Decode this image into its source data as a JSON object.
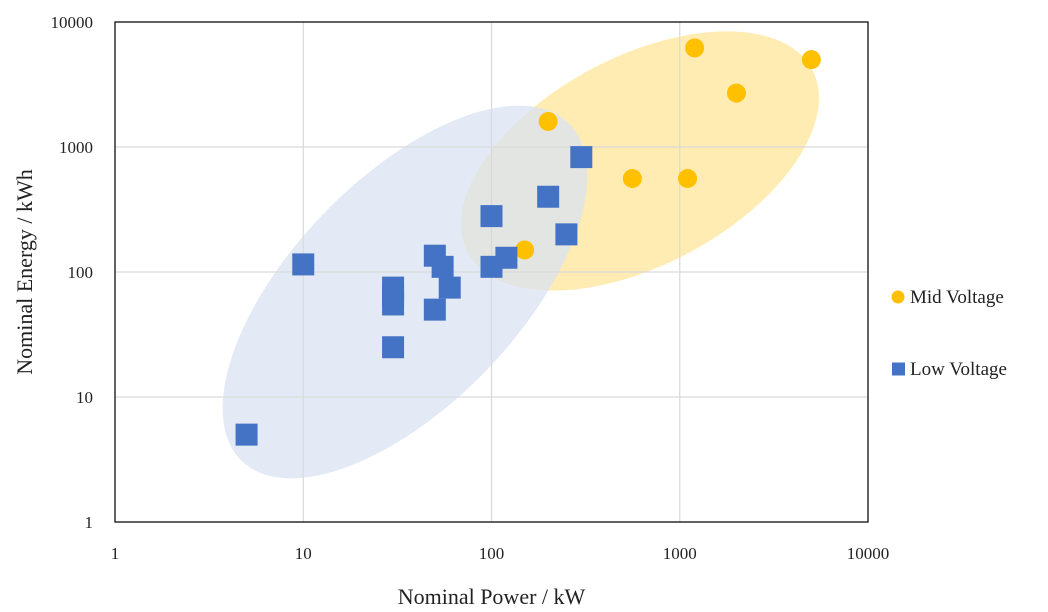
{
  "chart_data": {
    "type": "scatter",
    "xscale": "log",
    "yscale": "log",
    "xlim": [
      1,
      10000
    ],
    "ylim": [
      1,
      10000
    ],
    "xticks": [
      "1",
      "10",
      "100",
      "1000",
      "10000"
    ],
    "yticks": [
      "1",
      "10",
      "100",
      "1000",
      "10000"
    ],
    "xlabel": "Nominal Power / kW",
    "ylabel": "Nominal Energy / kWh",
    "grid": true,
    "legend_position": "right",
    "series": [
      {
        "name": "Mid Voltage",
        "marker": "circle",
        "color": "#FFC000",
        "x": [
          1200,
          5000,
          2000,
          200,
          560,
          1100,
          150
        ],
        "y": [
          6200,
          5000,
          2700,
          1600,
          560,
          560,
          150
        ]
      },
      {
        "name": "Low Voltage",
        "marker": "square",
        "color": "#4472C4",
        "x": [
          5,
          10,
          30,
          30,
          30,
          30,
          50,
          50,
          55,
          60,
          100,
          100,
          120,
          200,
          250,
          300
        ],
        "y": [
          5,
          115,
          75,
          65,
          55,
          25,
          135,
          50,
          110,
          75,
          280,
          110,
          130,
          400,
          200,
          830
        ]
      }
    ],
    "regions": [
      {
        "series": "Mid Voltage",
        "color": "#FFE699"
      },
      {
        "series": "Low Voltage",
        "color": "#DAE3F3"
      }
    ]
  }
}
